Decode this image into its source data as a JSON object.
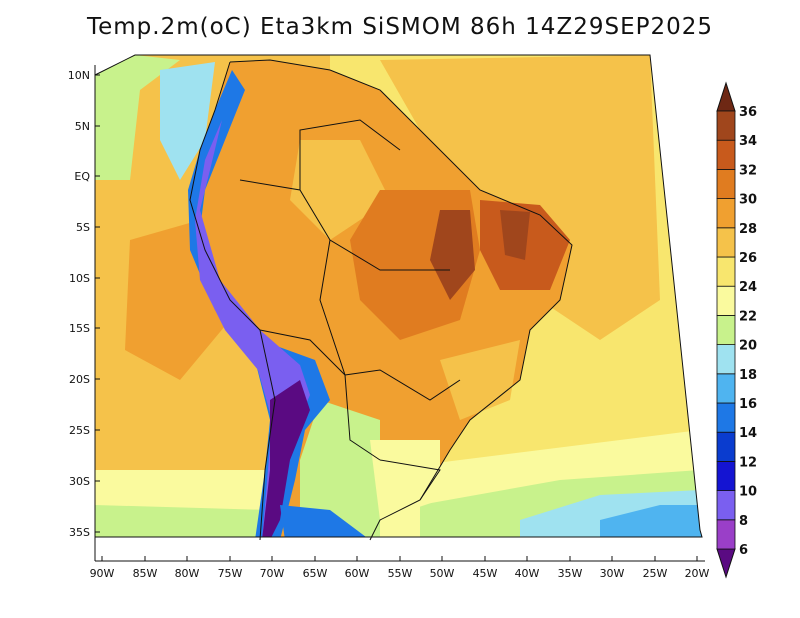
{
  "title": "Temp.2m(oC) Eta3km SiSMOM 86h 14Z29SEP2025",
  "map": {
    "variable": "2 m temperature",
    "units": "oC",
    "region": "South America",
    "lon_labels": [
      "90W",
      "85W",
      "80W",
      "75W",
      "70W",
      "65W",
      "60W",
      "55W",
      "50W",
      "45W",
      "40W",
      "35W",
      "30W",
      "25W",
      "20W"
    ],
    "lat_labels": [
      "10N",
      "5N",
      "EQ",
      "5S",
      "10S",
      "15S",
      "20S",
      "25S",
      "30S",
      "35S"
    ]
  },
  "colorbar": {
    "levels": [
      "6",
      "8",
      "10",
      "12",
      "14",
      "16",
      "18",
      "20",
      "22",
      "24",
      "26",
      "28",
      "30",
      "32",
      "34",
      "36"
    ],
    "colors": [
      "#5a0a82",
      "#9a3fc8",
      "#7a5ff0",
      "#1414d2",
      "#0a3ccf",
      "#1e78e6",
      "#4fb4f0",
      "#9fe2f0",
      "#c8f28c",
      "#fafa9e",
      "#f8e66e",
      "#f5c24a",
      "#f0a030",
      "#e07c20",
      "#c85a1c",
      "#a0461c",
      "#6e2814"
    ]
  },
  "regions": [
    {
      "name": "pacific",
      "color": "#f5c24a"
    },
    {
      "name": "atlantic",
      "color": "#f8e66e"
    },
    {
      "name": "brazil-interior",
      "color": "#f0a030"
    },
    {
      "name": "hot-core",
      "color": "#c85a1c"
    },
    {
      "name": "andes",
      "color": "#1e78e6"
    },
    {
      "name": "southern",
      "color": "#c8f28c"
    }
  ]
}
